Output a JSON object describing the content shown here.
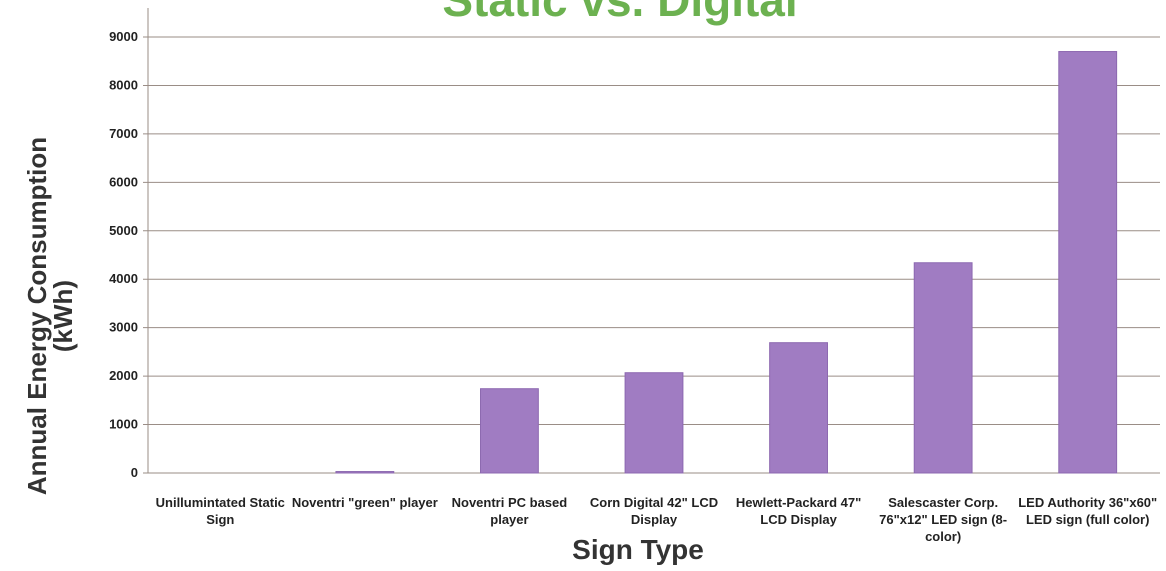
{
  "chart_data": {
    "type": "bar",
    "title": "Static vs. Digital",
    "x_label": "Sign Type",
    "y_label": "Annual Energy Consumption (kWh)",
    "categories": [
      "Unillumintated Static Sign",
      "Noventri \"green\" player",
      "Noventri PC based player",
      "Corn Digital 42\" LCD Display",
      "Hewlett-Packard 47\" LCD Display",
      "Salescaster Corp. 76\"x12\" LED sign (8-color)",
      "LED Authority 36\"x60\" LED sign (full color)"
    ],
    "values": [
      0,
      30,
      1740,
      2070,
      2690,
      4340,
      8700
    ],
    "color": "#a07cc2",
    "ylim": [
      0,
      9000
    ],
    "yticks": [
      0,
      1000,
      2000,
      3000,
      4000,
      5000,
      6000,
      7000,
      8000,
      9000
    ],
    "grid": true
  }
}
